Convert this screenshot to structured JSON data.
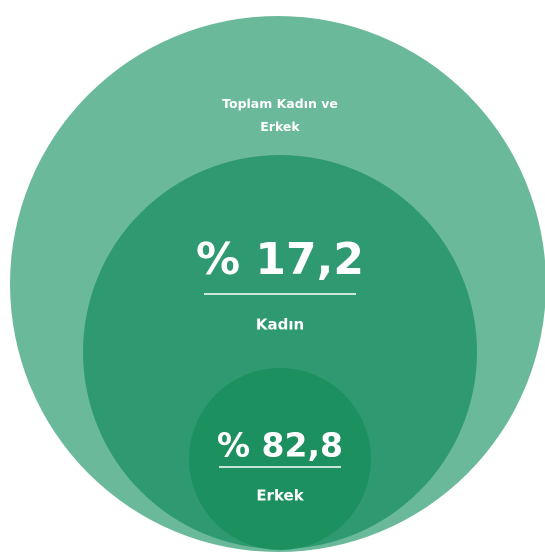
{
  "chart_data": {
    "type": "nested-circles",
    "title": "Toplam Kadın ve Erkek",
    "total_color": "#6ab99b",
    "categories": [
      "Kadın",
      "Erkek"
    ],
    "values": [
      17.2,
      82.8
    ],
    "value_labels": [
      "% 17,2",
      "% 82,8"
    ],
    "colors": [
      "#2f9a72",
      "#1d905f"
    ]
  }
}
